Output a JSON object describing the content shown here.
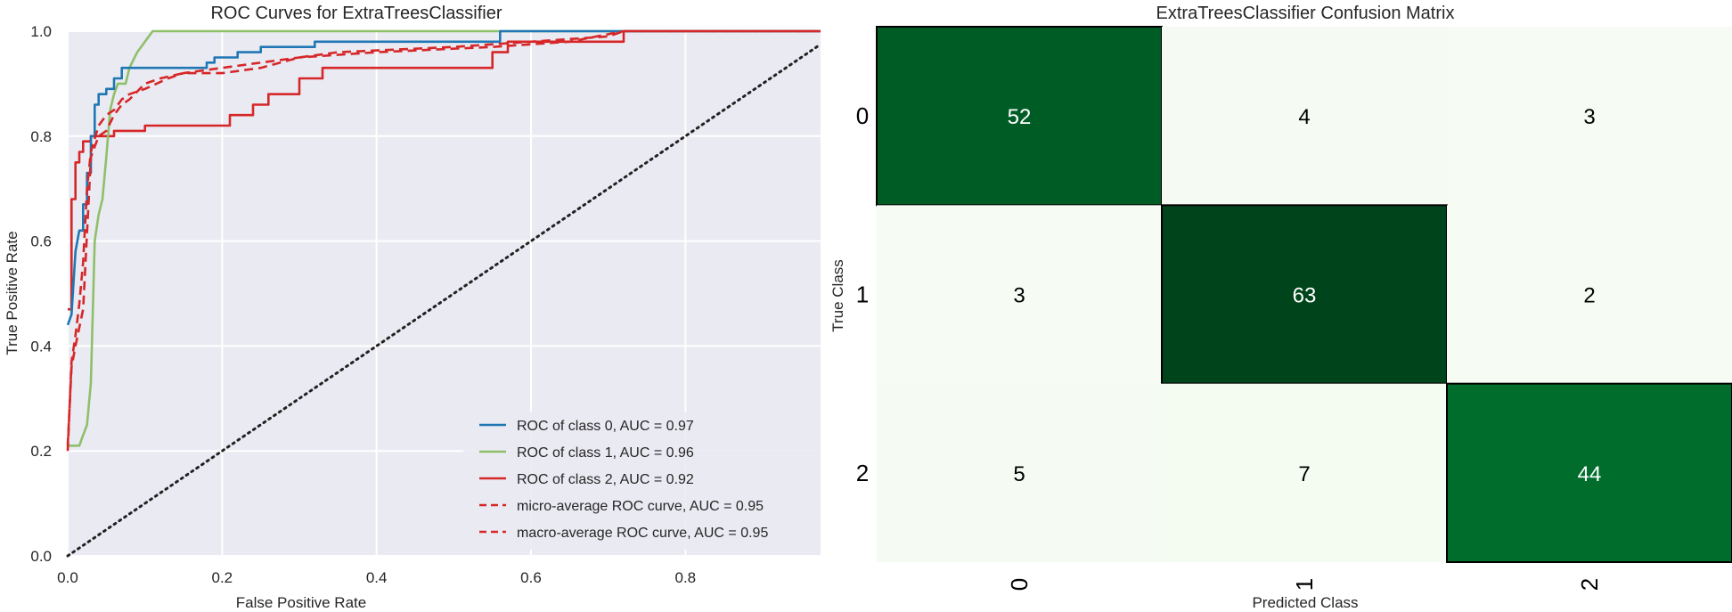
{
  "chart_data": [
    {
      "type": "line",
      "title": "ROC Curves for ExtraTreesClassifier",
      "xlabel": "False Positive Rate",
      "ylabel": "True Positive Rate",
      "xlim": [
        0.0,
        0.975
      ],
      "ylim": [
        0.0,
        1.0
      ],
      "xticks": [
        "0.0",
        "0.2",
        "0.4",
        "0.6",
        "0.8"
      ],
      "yticks": [
        "0.0",
        "0.2",
        "0.4",
        "0.6",
        "0.8",
        "1.0"
      ],
      "grid": true,
      "legend_position": "lower-right",
      "series": [
        {
          "name": "ROC of class 0, AUC = 0.97",
          "color": "#1f77b4",
          "style": "solid",
          "points": [
            [
              0,
              0.44
            ],
            [
              0.005,
              0.46
            ],
            [
              0.01,
              0.58
            ],
            [
              0.015,
              0.62
            ],
            [
              0.02,
              0.62
            ],
            [
              0.02,
              0.67
            ],
            [
              0.025,
              0.67
            ],
            [
              0.025,
              0.73
            ],
            [
              0.03,
              0.73
            ],
            [
              0.03,
              0.8
            ],
            [
              0.035,
              0.8
            ],
            [
              0.035,
              0.86
            ],
            [
              0.04,
              0.86
            ],
            [
              0.04,
              0.88
            ],
            [
              0.05,
              0.88
            ],
            [
              0.05,
              0.89
            ],
            [
              0.06,
              0.89
            ],
            [
              0.06,
              0.91
            ],
            [
              0.07,
              0.91
            ],
            [
              0.07,
              0.93
            ],
            [
              0.18,
              0.93
            ],
            [
              0.18,
              0.94
            ],
            [
              0.19,
              0.94
            ],
            [
              0.19,
              0.95
            ],
            [
              0.22,
              0.95
            ],
            [
              0.22,
              0.96
            ],
            [
              0.25,
              0.96
            ],
            [
              0.25,
              0.97
            ],
            [
              0.32,
              0.97
            ],
            [
              0.32,
              0.98
            ],
            [
              0.56,
              0.98
            ],
            [
              0.56,
              1.0
            ],
            [
              0.975,
              1.0
            ]
          ]
        },
        {
          "name": "ROC of class 1, AUC = 0.96",
          "color": "#8fbf6a",
          "style": "solid",
          "points": [
            [
              0,
              0.21
            ],
            [
              0.015,
              0.21
            ],
            [
              0.02,
              0.23
            ],
            [
              0.025,
              0.25
            ],
            [
              0.03,
              0.33
            ],
            [
              0.035,
              0.6
            ],
            [
              0.04,
              0.65
            ],
            [
              0.045,
              0.68
            ],
            [
              0.05,
              0.76
            ],
            [
              0.055,
              0.85
            ],
            [
              0.06,
              0.88
            ],
            [
              0.065,
              0.9
            ],
            [
              0.075,
              0.9
            ],
            [
              0.08,
              0.93
            ],
            [
              0.09,
              0.96
            ],
            [
              0.1,
              0.98
            ],
            [
              0.11,
              1.0
            ],
            [
              0.17,
              1.0
            ],
            [
              0.975,
              1.0
            ]
          ]
        },
        {
          "name": "ROC of class 2, AUC = 0.92",
          "color": "#d62728",
          "style": "solid",
          "points": [
            [
              0,
              0.47
            ],
            [
              0.005,
              0.47
            ],
            [
              0.005,
              0.68
            ],
            [
              0.01,
              0.68
            ],
            [
              0.01,
              0.75
            ],
            [
              0.015,
              0.75
            ],
            [
              0.015,
              0.77
            ],
            [
              0.02,
              0.77
            ],
            [
              0.02,
              0.79
            ],
            [
              0.03,
              0.79
            ],
            [
              0.03,
              0.8
            ],
            [
              0.06,
              0.8
            ],
            [
              0.06,
              0.81
            ],
            [
              0.1,
              0.81
            ],
            [
              0.1,
              0.82
            ],
            [
              0.21,
              0.82
            ],
            [
              0.21,
              0.84
            ],
            [
              0.24,
              0.84
            ],
            [
              0.24,
              0.86
            ],
            [
              0.26,
              0.86
            ],
            [
              0.26,
              0.88
            ],
            [
              0.3,
              0.88
            ],
            [
              0.3,
              0.91
            ],
            [
              0.33,
              0.91
            ],
            [
              0.33,
              0.93
            ],
            [
              0.55,
              0.93
            ],
            [
              0.55,
              0.96
            ],
            [
              0.57,
              0.96
            ],
            [
              0.57,
              0.98
            ],
            [
              0.72,
              0.98
            ],
            [
              0.72,
              1.0
            ],
            [
              0.975,
              1.0
            ]
          ]
        },
        {
          "name": "micro-average ROC curve, AUC = 0.95",
          "color": "#d62728",
          "style": "dashed",
          "points": [
            [
              0,
              0.2
            ],
            [
              0.005,
              0.37
            ],
            [
              0.01,
              0.42
            ],
            [
              0.015,
              0.48
            ],
            [
              0.02,
              0.56
            ],
            [
              0.025,
              0.7
            ],
            [
              0.03,
              0.77
            ],
            [
              0.04,
              0.82
            ],
            [
              0.05,
              0.84
            ],
            [
              0.06,
              0.85
            ],
            [
              0.07,
              0.87
            ],
            [
              0.08,
              0.88
            ],
            [
              0.1,
              0.89
            ],
            [
              0.13,
              0.91
            ],
            [
              0.15,
              0.92
            ],
            [
              0.2,
              0.93
            ],
            [
              0.25,
              0.94
            ],
            [
              0.3,
              0.95
            ],
            [
              0.4,
              0.96
            ],
            [
              0.55,
              0.97
            ],
            [
              0.65,
              0.98
            ],
            [
              0.72,
              1.0
            ],
            [
              0.975,
              1.0
            ]
          ]
        },
        {
          "name": "macro-average ROC curve, AUC = 0.95",
          "color": "#d62728",
          "style": "dashed",
          "points": [
            [
              0,
              0.21
            ],
            [
              0.005,
              0.36
            ],
            [
              0.01,
              0.4
            ],
            [
              0.02,
              0.47
            ],
            [
              0.03,
              0.76
            ],
            [
              0.04,
              0.8
            ],
            [
              0.05,
              0.81
            ],
            [
              0.06,
              0.84
            ],
            [
              0.07,
              0.86
            ],
            [
              0.08,
              0.87
            ],
            [
              0.1,
              0.9
            ],
            [
              0.12,
              0.91
            ],
            [
              0.15,
              0.92
            ],
            [
              0.2,
              0.92
            ],
            [
              0.25,
              0.93
            ],
            [
              0.3,
              0.95
            ],
            [
              0.35,
              0.96
            ],
            [
              0.5,
              0.97
            ],
            [
              0.6,
              0.98
            ],
            [
              0.7,
              0.99
            ],
            [
              0.72,
              1.0
            ],
            [
              0.975,
              1.0
            ]
          ]
        }
      ],
      "reference_line": {
        "points": [
          [
            0,
            0
          ],
          [
            0.975,
            0.975
          ]
        ],
        "color": "#222222",
        "style": "dotted"
      }
    },
    {
      "type": "heatmap",
      "title": "ExtraTreesClassifier Confusion Matrix",
      "xlabel": "Predicted Class",
      "ylabel": "True Class",
      "x_categories": [
        "0",
        "1",
        "2"
      ],
      "y_categories": [
        "0",
        "1",
        "2"
      ],
      "values": [
        [
          52,
          4,
          3
        ],
        [
          3,
          63,
          2
        ],
        [
          5,
          7,
          44
        ]
      ],
      "colormap": "Greens",
      "diagonal_borders": true
    }
  ]
}
